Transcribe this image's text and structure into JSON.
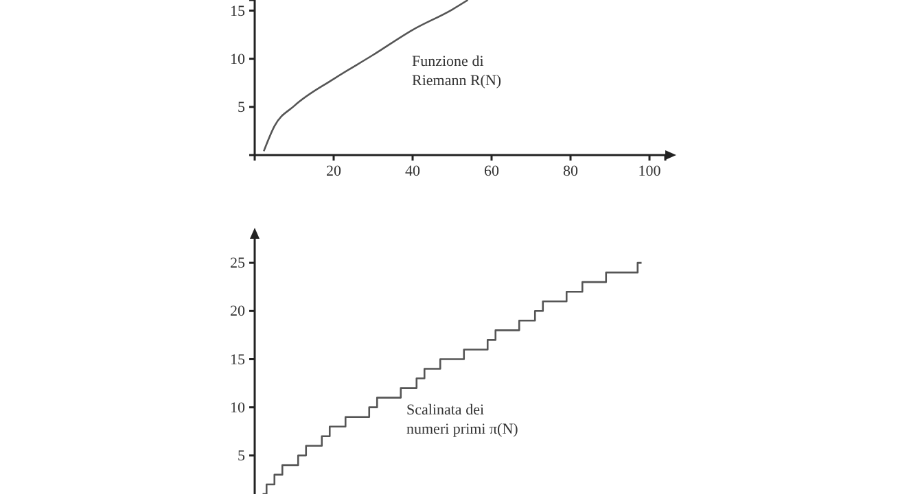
{
  "chart_data": [
    {
      "type": "line",
      "x": [
        2.3,
        5,
        10,
        20,
        30,
        40,
        50,
        54
      ],
      "values": [
        0.4,
        3.0,
        5.1,
        7.9,
        10.4,
        13,
        15.1,
        16.1
      ],
      "color": "#555555",
      "xlim": [
        0,
        104
      ],
      "ylim": [
        0,
        16.1
      ],
      "xticks": [
        20,
        40,
        60,
        80,
        100
      ],
      "yticks": [
        5,
        10,
        15
      ],
      "grid": false,
      "legend": false,
      "marker": "none",
      "line_style": "solid",
      "annotations": [
        "Funzione di\nRiemann R(N)"
      ]
    },
    {
      "type": "step",
      "categories": [
        null,
        null,
        null,
        null,
        null,
        null,
        null,
        null,
        null,
        null,
        null,
        null,
        null,
        null,
        null,
        null,
        null,
        null,
        null,
        null,
        null,
        null,
        null,
        null,
        null,
        null,
        null,
        null,
        null,
        null,
        null,
        null,
        null,
        null,
        null,
        null,
        null,
        null,
        null,
        null,
        null,
        null,
        null,
        null,
        null,
        null,
        null,
        null,
        null,
        null,
        null,
        null,
        null,
        null,
        null,
        null,
        null,
        null,
        null,
        null,
        null,
        null,
        null,
        null,
        null,
        null,
        null,
        null,
        null,
        null,
        null,
        null,
        null,
        null,
        null,
        null,
        null,
        null,
        null,
        null,
        null,
        null,
        null,
        null,
        null,
        null,
        null,
        null,
        null,
        null,
        null,
        null,
        null,
        null,
        null,
        null,
        null
      ],
      "values": [
        1,
        2,
        2,
        3,
        3,
        4,
        4,
        4,
        4,
        5,
        5,
        6,
        6,
        6,
        6,
        7,
        7,
        8,
        8,
        8,
        8,
        9,
        9,
        9,
        9,
        9,
        9,
        10,
        10,
        11,
        11,
        11,
        11,
        11,
        11,
        12,
        12,
        12,
        12,
        13,
        13,
        14,
        14,
        14,
        14,
        15,
        15,
        15,
        15,
        15,
        15,
        16,
        16,
        16,
        16,
        16,
        16,
        17,
        17,
        18,
        18,
        18,
        18,
        18,
        18,
        19,
        19,
        19,
        19,
        20,
        20,
        21,
        21,
        21,
        21,
        21,
        21,
        22,
        22,
        22,
        22,
        23,
        23,
        23,
        23,
        23,
        23,
        24,
        24,
        24,
        24,
        24,
        24,
        24,
        24,
        25,
        25
      ],
      "color": "#555555",
      "ylim": [
        1,
        27.5
      ],
      "yticks": [
        5,
        10,
        15,
        20,
        25
      ],
      "tick_labels": "y",
      "grid": false,
      "legend": false,
      "marker": "none",
      "line_style": "solid",
      "annotations": [
        "Scalinata dei\nnumeri primi π(N)"
      ]
    }
  ]
}
